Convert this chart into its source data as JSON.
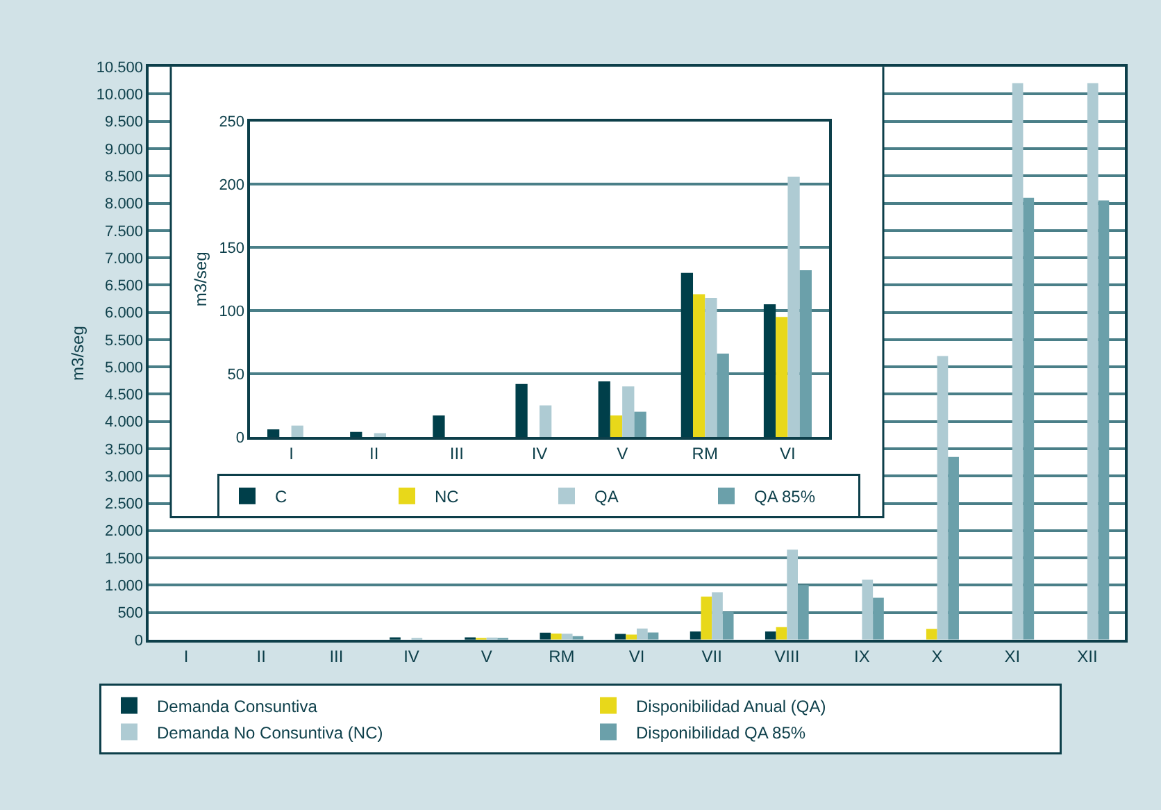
{
  "chart_data": [
    {
      "type": "bar",
      "ylabel": "m3/seg",
      "categories": [
        "I",
        "II",
        "III",
        "IV",
        "V",
        "RM",
        "VI",
        "VII",
        "VIII",
        "IX",
        "X",
        "XI",
        "XII"
      ],
      "series": [
        {
          "name": "Demanda Consuntiva",
          "color": "#003f4a",
          "values": [
            null,
            null,
            null,
            42,
            44,
            130,
            105,
            150,
            150,
            null,
            null,
            null,
            null
          ]
        },
        {
          "name": "Disponibilidad Anual (QA)",
          "color": "#e8d81a",
          "values": [
            null,
            null,
            null,
            null,
            17,
            113,
            95,
            790,
            230,
            null,
            200,
            null,
            null
          ]
        },
        {
          "name": "Demanda No Consuntiva (NC)",
          "color": "#aecbd3",
          "values": [
            null,
            null,
            null,
            25,
            40,
            110,
            206,
            870,
            1650,
            1100,
            5200,
            10200,
            10200
          ]
        },
        {
          "name": "Disponibilidad QA 85%",
          "color": "#6ba0aa",
          "values": [
            null,
            null,
            null,
            null,
            20,
            66,
            132,
            510,
            1000,
            770,
            3350,
            8100,
            8050
          ]
        }
      ],
      "ylim": [
        0,
        10500
      ],
      "yticks": [
        0,
        500,
        {
          "value": 1000,
          "label": "1.000"
        },
        {
          "value": 1500,
          "label": "1.500"
        },
        {
          "value": 2000,
          "label": "2.000"
        },
        {
          "value": 2500,
          "label": "2.500"
        },
        {
          "value": 3000,
          "label": "3.000"
        },
        {
          "value": 3500,
          "label": "3.500"
        },
        {
          "value": 4000,
          "label": "4.000"
        },
        {
          "value": 4500,
          "label": "4.500"
        },
        {
          "value": 5000,
          "label": "5.000"
        },
        {
          "value": 5500,
          "label": "5.500"
        },
        {
          "value": 6000,
          "label": "6.000"
        },
        {
          "value": 6500,
          "label": "6.500"
        },
        {
          "value": 7000,
          "label": "7.000"
        },
        {
          "value": 7500,
          "label": "7.500"
        },
        {
          "value": 8000,
          "label": "8.000"
        },
        {
          "value": 8500,
          "label": "8.500"
        },
        {
          "value": 9000,
          "label": "9.000"
        },
        {
          "value": 9500,
          "label": "9.500"
        },
        {
          "value": 10000,
          "label": "10.000"
        },
        {
          "value": 10500,
          "label": "10.500"
        }
      ],
      "grid": "y",
      "legend": "bottom"
    },
    {
      "type": "bar",
      "ylabel": "m3/seg",
      "categories": [
        "I",
        "II",
        "III",
        "IV",
        "V",
        "RM",
        "VI"
      ],
      "series": [
        {
          "name": "C",
          "color": "#003f4a",
          "values": [
            6,
            4,
            17,
            42,
            44,
            130,
            105
          ]
        },
        {
          "name": "NC",
          "color": "#e8d81a",
          "values": [
            null,
            null,
            null,
            null,
            17,
            113,
            95
          ]
        },
        {
          "name": "QA",
          "color": "#aecbd3",
          "values": [
            9,
            3,
            null,
            25,
            40,
            110,
            206
          ]
        },
        {
          "name": "QA 85%",
          "color": "#6ba0aa",
          "values": [
            null,
            null,
            null,
            null,
            20,
            66,
            132
          ]
        }
      ],
      "ylim": [
        0,
        250
      ],
      "yticks": [
        0,
        50,
        100,
        150,
        200,
        250
      ],
      "grid": "y",
      "legend": "bottom"
    }
  ]
}
